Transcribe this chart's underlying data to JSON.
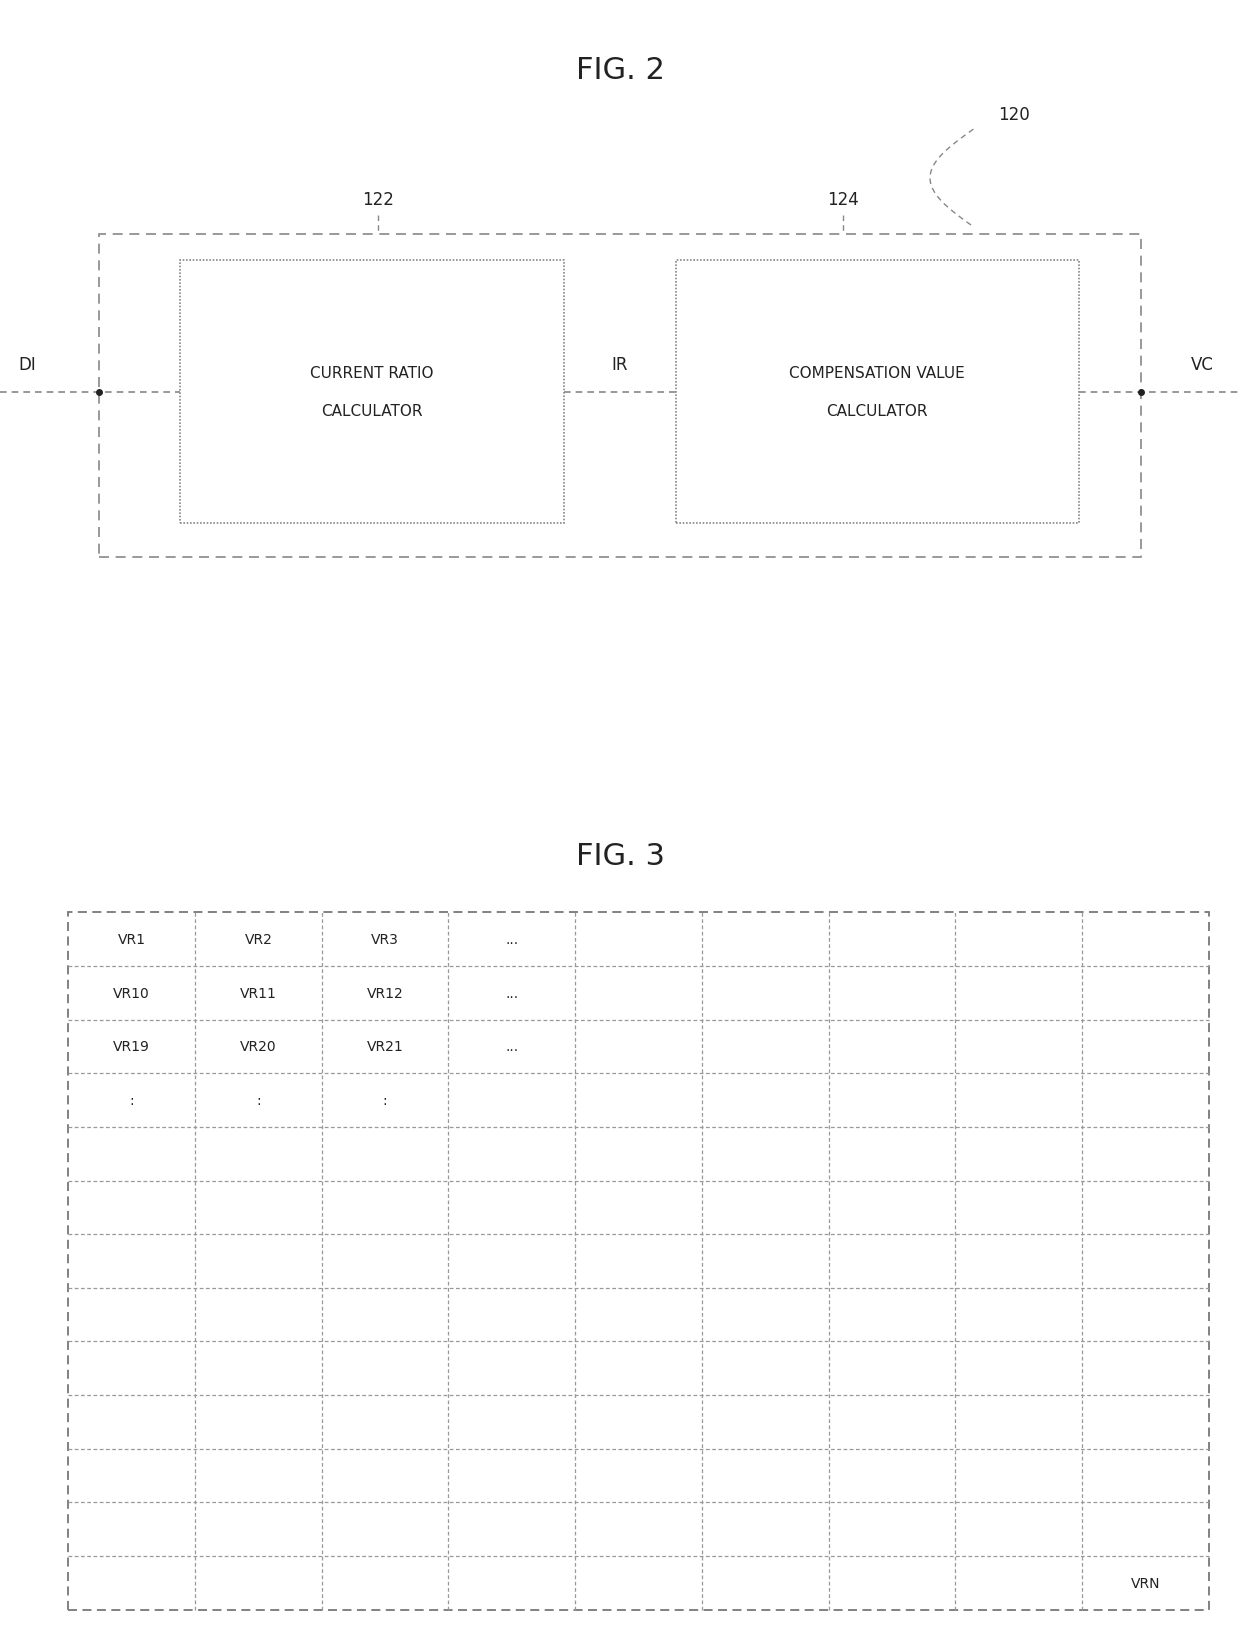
{
  "fig_title1": "FIG. 2",
  "fig_title2": "FIG. 3",
  "label_120": "120",
  "label_122": "122",
  "label_124": "124",
  "box1_text_line1": "CURRENT RATIO",
  "box1_text_line2": "CALCULATOR",
  "box2_text_line1": "COMPENSATION VALUE",
  "box2_text_line2": "CALCULATOR",
  "di_label": "DI",
  "ir_label": "IR",
  "vc_label": "VC",
  "table_rows": 13,
  "table_cols": 9,
  "table_data": [
    [
      "VR1",
      "VR2",
      "VR3",
      "...",
      "",
      "",
      "",
      "",
      ""
    ],
    [
      "VR10",
      "VR11",
      "VR12",
      "...",
      "",
      "",
      "",
      "",
      ""
    ],
    [
      "VR19",
      "VR20",
      "VR21",
      "...",
      "",
      "",
      "",
      "",
      ""
    ],
    [
      ":",
      ":",
      ":",
      "",
      "",
      "",
      "",
      "",
      ""
    ],
    [
      "",
      "",
      "",
      "",
      "",
      "",
      "",
      "",
      ""
    ],
    [
      "",
      "",
      "",
      "",
      "",
      "",
      "",
      "",
      ""
    ],
    [
      "",
      "",
      "",
      "",
      "",
      "",
      "",
      "",
      ""
    ],
    [
      "",
      "",
      "",
      "",
      "",
      "",
      "",
      "",
      ""
    ],
    [
      "",
      "",
      "",
      "",
      "",
      "",
      "",
      "",
      ""
    ],
    [
      "",
      "",
      "",
      "",
      "",
      "",
      "",
      "",
      ""
    ],
    [
      "",
      "",
      "",
      "",
      "",
      "",
      "",
      "",
      ""
    ],
    [
      "",
      "",
      "",
      "",
      "",
      "",
      "",
      "",
      ""
    ],
    [
      "",
      "",
      "",
      "",
      "",
      "",
      "",
      "",
      "VRN"
    ]
  ],
  "bg_color": "#ffffff",
  "line_color": "#888888",
  "text_color": "#222222",
  "font_size_title": 22,
  "font_size_label": 12,
  "font_size_box": 11,
  "font_size_table": 10
}
